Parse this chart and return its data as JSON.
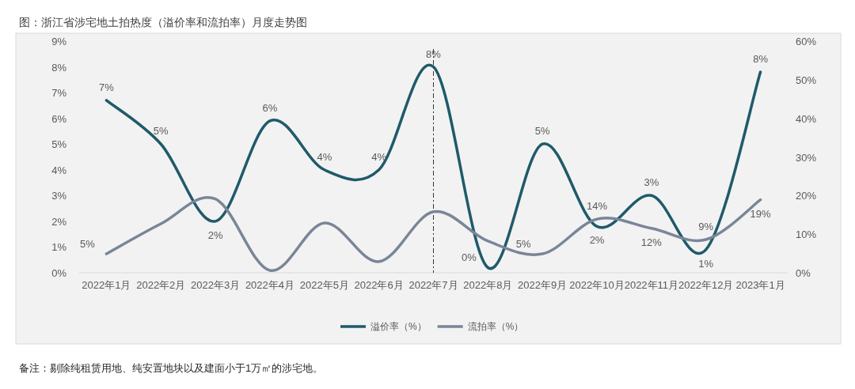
{
  "chart_data": {
    "type": "line",
    "title": "图：浙江省涉宅地土拍热度（溢价率和流拍率）月度走势图",
    "annotations": [
      "备注：剔除纯租赁用地、纯安置地块以及建面小于1万㎡的涉宅地。"
    ],
    "categories": [
      "2022年1月",
      "2022年2月",
      "2022年3月",
      "2022年4月",
      "2022年5月",
      "2022年6月",
      "2022年7月",
      "2022年8月",
      "2022年9月",
      "2022年10月",
      "2022年11月",
      "2022年12月",
      "2023年1月"
    ],
    "series": [
      {
        "name": "溢价率（%）",
        "color": "#1f5a6a",
        "values": [
          6.7,
          5.0,
          2.0,
          5.9,
          4.0,
          4.0,
          8.0,
          0.2,
          5.0,
          1.8,
          3.0,
          0.9,
          7.8
        ],
        "value_labels": [
          "7%",
          "5%",
          "2%",
          "6%",
          "4%",
          "4%",
          "8%",
          "0%",
          "5%",
          "2%",
          "3%",
          "1%",
          "8%"
        ]
      },
      {
        "name": "流拍率（%）",
        "color": "#7a8598",
        "axis": "y2",
        "values": [
          4.9,
          12.7,
          19.1,
          0.6,
          12.9,
          2.9,
          15.8,
          8.2,
          4.9,
          13.9,
          11.5,
          8.6,
          18.9
        ],
        "value_labels": [
          "5%",
          null,
          null,
          null,
          null,
          null,
          null,
          null,
          "5%",
          "14%",
          "12%",
          "9%",
          "19%"
        ]
      }
    ],
    "ylim": [
      0,
      9
    ],
    "yticks": [
      {
        "value": 0,
        "label": "0%"
      },
      {
        "value": 1,
        "label": "1%"
      },
      {
        "value": 2,
        "label": "2%"
      },
      {
        "value": 3,
        "label": "3%"
      },
      {
        "value": 4,
        "label": "4%"
      },
      {
        "value": 5,
        "label": "5%"
      },
      {
        "value": 6,
        "label": "6%"
      },
      {
        "value": 7,
        "label": "7%"
      },
      {
        "value": 8,
        "label": "8%"
      },
      {
        "value": 9,
        "label": "9%"
      }
    ],
    "y2lim": [
      0,
      60
    ],
    "y2ticks": [
      {
        "value": 0,
        "label": "0%"
      },
      {
        "value": 10,
        "label": "10%"
      },
      {
        "value": 20,
        "label": "20%"
      },
      {
        "value": 30,
        "label": "30%"
      },
      {
        "value": 40,
        "label": "40%"
      },
      {
        "value": 50,
        "label": "50%"
      },
      {
        "value": 60,
        "label": "60%"
      }
    ],
    "ref_lines": [
      {
        "axis": "x",
        "value": "2022年7月",
        "line_style": "dashdot",
        "color": "#333333"
      }
    ],
    "legend": "bottom"
  }
}
